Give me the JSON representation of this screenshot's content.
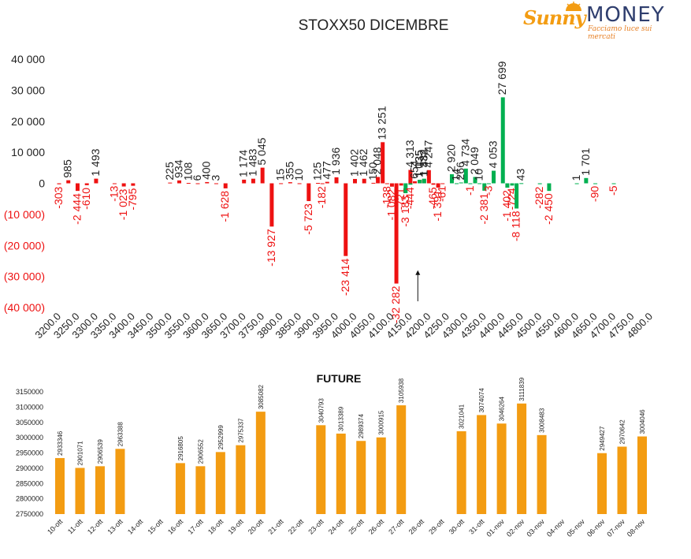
{
  "logo": {
    "name_part1": "Sunny",
    "name_part2": "MONEY",
    "tagline": "Facciamo luce sui mercati",
    "colors": {
      "sunny": "#f39c12",
      "money": "#2f3e6e"
    }
  },
  "colors": {
    "positive": "#00b050",
    "negative": "#ee1111",
    "future": "#f39c12",
    "text": "#222222"
  },
  "chart_data": [
    {
      "type": "bar",
      "title": "STOXX50 DICEMBRE",
      "xlabel": "",
      "ylabel": "",
      "ylim": [
        -40000,
        40000
      ],
      "y_ticks": [
        "40 000",
        "30 000",
        "20 000",
        "10 000",
        "0",
        "(10 000)",
        "(20 000)",
        "(30 000)",
        "(40 000)"
      ],
      "categories": [
        "3200.0",
        "3250.0",
        "3300.0",
        "3350.0",
        "3400.0",
        "3450.0",
        "3500.0",
        "3550.0",
        "3600.0",
        "3650.0",
        "3700.0",
        "3750.0",
        "3800.0",
        "3850.0",
        "3900.0",
        "3950.0",
        "4000.0",
        "4050.0",
        "4100.0",
        "4150.0",
        "4200.0",
        "4250.0",
        "4300.0",
        "4350.0",
        "4400.0",
        "4450.0",
        "4500.0",
        "4550.0",
        "4600.0",
        "4650.0",
        "4700.0",
        "4750.0",
        "4800.0"
      ],
      "series": [
        {
          "color": "red",
          "bars": [
            {
              "x": 3200,
              "y": -303,
              "label": "-303"
            },
            {
              "x": 3225,
              "y": 985,
              "label": "985"
            },
            {
              "x": 3250,
              "y": -2444,
              "label": "-2 444"
            },
            {
              "x": 3275,
              "y": -610,
              "label": "-610"
            },
            {
              "x": 3300,
              "y": 1493,
              "label": "1 493"
            },
            {
              "x": 3350,
              "y": -13,
              "label": "-13"
            },
            {
              "x": 3375,
              "y": -1023,
              "label": "-1 023"
            },
            {
              "x": 3400,
              "y": -795,
              "label": "-795"
            },
            {
              "x": 3500,
              "y": 225,
              "label": "225"
            },
            {
              "x": 3525,
              "y": 934,
              "label": "934"
            },
            {
              "x": 3550,
              "y": 108,
              "label": "108"
            },
            {
              "x": 3575,
              "y": 6,
              "label": "6"
            },
            {
              "x": 3600,
              "y": 400,
              "label": "400"
            },
            {
              "x": 3625,
              "y": 3,
              "label": "3"
            },
            {
              "x": 3650,
              "y": -1628,
              "label": "-1 628"
            },
            {
              "x": 3700,
              "y": 1174,
              "label": "1 174"
            },
            {
              "x": 3725,
              "y": 1483,
              "label": "1 483"
            },
            {
              "x": 3750,
              "y": 5045,
              "label": "5 045"
            },
            {
              "x": 3775,
              "y": -13927,
              "label": "-13 927"
            },
            {
              "x": 3800,
              "y": 15,
              "label": "15"
            },
            {
              "x": 3825,
              "y": 355,
              "label": "355"
            },
            {
              "x": 3850,
              "y": 10,
              "label": "10"
            },
            {
              "x": 3875,
              "y": -5723,
              "label": "-5 723"
            },
            {
              "x": 3900,
              "y": 125,
              "label": "125"
            },
            {
              "x": 3912,
              "y": -182,
              "label": "-182"
            },
            {
              "x": 3925,
              "y": 477,
              "label": "477"
            },
            {
              "x": 3950,
              "y": 1936,
              "label": "1 936"
            },
            {
              "x": 3975,
              "y": -23414,
              "label": "-23 414"
            },
            {
              "x": 4000,
              "y": 1402,
              "label": "1 402"
            },
            {
              "x": 4025,
              "y": 1462,
              "label": "1 462"
            },
            {
              "x": 4050,
              "y": 150,
              "label": "150"
            },
            {
              "x": 4062,
              "y": 2048,
              "label": "2 048"
            },
            {
              "x": 4075,
              "y": 13251,
              "label": "13 251"
            },
            {
              "x": 4087,
              "y": -138,
              "label": "-138"
            },
            {
              "x": 4100,
              "y": -1082,
              "label": "-1 082"
            },
            {
              "x": 4112,
              "y": -32282,
              "label": "-32 282"
            },
            {
              "x": 4125,
              "y": -721,
              "label": "-721"
            },
            {
              "x": 4150,
              "y": 4313,
              "label": "4 313"
            },
            {
              "x": 4162,
              "y": 654,
              "label": "654"
            },
            {
              "x": 4175,
              "y": 1035,
              "label": "1 035"
            },
            {
              "x": 4187,
              "y": 1332,
              "label": "1 332"
            },
            {
              "x": 4200,
              "y": 4247,
              "label": "4 247"
            },
            {
              "x": 4212,
              "y": -465,
              "label": "-465"
            },
            {
              "x": 4225,
              "y": -1391,
              "label": "-1 391"
            },
            {
              "x": 4237,
              "y": -61,
              "label": "-61"
            }
          ]
        },
        {
          "color": "green",
          "bars": [
            {
              "x": 4137,
              "y": -3183,
              "label": "-3 183"
            },
            {
              "x": 4150,
              "y": -444,
              "label": "-444"
            },
            {
              "x": 4175,
              "y": 1135,
              "label": "1 135"
            },
            {
              "x": 4187,
              "y": 1484,
              "label": "1 484"
            },
            {
              "x": 4262,
              "y": 2920,
              "label": "2 920"
            },
            {
              "x": 4275,
              "y": 14,
              "label": "14"
            },
            {
              "x": 4287,
              "y": 266,
              "label": "266"
            },
            {
              "x": 4300,
              "y": 4734,
              "label": "4 734"
            },
            {
              "x": 4312,
              "y": -1,
              "label": "-1"
            },
            {
              "x": 4325,
              "y": 2049,
              "label": "2 049"
            },
            {
              "x": 4337,
              "y": 10,
              "label": "10"
            },
            {
              "x": 4350,
              "y": -2381,
              "label": "-2 381"
            },
            {
              "x": 4362,
              "y": -3,
              "label": "-3"
            },
            {
              "x": 4375,
              "y": 4053,
              "label": "4 053"
            },
            {
              "x": 4400,
              "y": 27699,
              "label": "27 699"
            },
            {
              "x": 4412,
              "y": -1402,
              "label": "-1 402"
            },
            {
              "x": 4425,
              "y": -724,
              "label": "-724"
            },
            {
              "x": 4437,
              "y": -8118,
              "label": "-8 118"
            },
            {
              "x": 4450,
              "y": 43,
              "label": "43"
            },
            {
              "x": 4500,
              "y": -282,
              "label": "-282"
            },
            {
              "x": 4525,
              "y": -2450,
              "label": "-2 450"
            },
            {
              "x": 4600,
              "y": 1,
              "label": "1"
            },
            {
              "x": 4625,
              "y": 1701,
              "label": "1 701"
            },
            {
              "x": 4650,
              "y": -90,
              "label": "-90"
            },
            {
              "x": 4700,
              "y": -5,
              "label": "-5"
            }
          ]
        }
      ],
      "annotation": {
        "type": "arrow",
        "x": 4170,
        "y_from": -38000,
        "y_to": -28000
      }
    },
    {
      "type": "bar",
      "title": "FUTURE",
      "xlabel": "",
      "ylabel": "",
      "ylim": [
        2750000,
        3150000
      ],
      "y_ticks": [
        "3150000",
        "3100000",
        "3050000",
        "3000000",
        "2950000",
        "2900000",
        "2850000",
        "2800000",
        "2750000"
      ],
      "categories": [
        "10-ott",
        "11-ott",
        "12-ott",
        "13-ott",
        "14-ott",
        "15-ott",
        "16-ott",
        "17-ott",
        "18-ott",
        "19-ott",
        "20-ott",
        "21-ott",
        "22-ott",
        "23-ott",
        "24-ott",
        "25-ott",
        "26-ott",
        "27-ott",
        "28-ott",
        "29-ott",
        "30-ott",
        "31-ott",
        "01-nov",
        "02-nov",
        "03-nov",
        "04-nov",
        "05-nov",
        "06-nov",
        "07-nov",
        "08-nov"
      ],
      "values": [
        2933346,
        2901071,
        2906539,
        2963388,
        null,
        null,
        2916805,
        2906552,
        2952999,
        2975337,
        3085082,
        null,
        null,
        3040793,
        3013389,
        2989374,
        3000915,
        3105938,
        null,
        null,
        3021041,
        3074074,
        3046264,
        3111839,
        3008483,
        null,
        null,
        2949427,
        2970642,
        3004046
      ]
    }
  ]
}
